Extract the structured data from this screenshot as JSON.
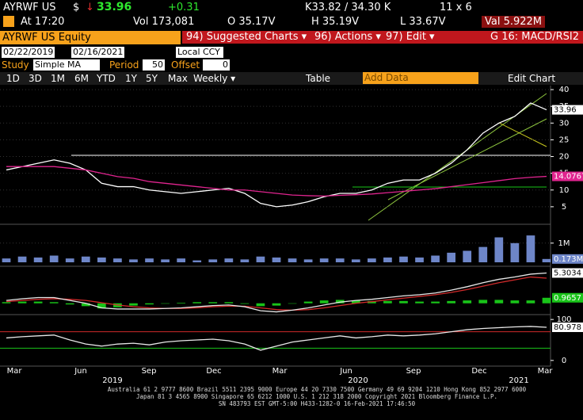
{
  "header": {
    "ticker": "AYRWF US",
    "currency": "$",
    "arrow": "↓",
    "price": "33.96",
    "change": "+0.31",
    "quote": "K33.82 / 34.30 K",
    "size": "11 x 6",
    "time": "At 17:20",
    "volume": "Vol 173,081",
    "open": "O 35.17V",
    "high": "H 35.19V",
    "low": "L 33.67V",
    "value": "Val 5.922M"
  },
  "toolbar": {
    "security": "AYRWF US Equity",
    "buttons": [
      "94) Suggested Charts ▾",
      "96) Actions ▾",
      "97) Edit ▾"
    ],
    "chart_name": "G 16: MACD/RSI2"
  },
  "controls": {
    "start": "02/22/2019",
    "end": "02/16/2021",
    "currency": "Local CCY",
    "study_label": "Study",
    "study": "Simple MA",
    "period_label": "Period",
    "period": "50",
    "offset_label": "Offset",
    "offset": "0",
    "ranges": [
      "1D",
      "3D",
      "1M",
      "6M",
      "YTD",
      "1Y",
      "5Y",
      "Max"
    ],
    "frequency": "Weekly ▾",
    "table": "Table",
    "add_data": "Add Data",
    "edit_chart": "Edit Chart"
  },
  "chart_data": [
    {
      "type": "line",
      "ylim": [
        0,
        41.2
      ],
      "yticks": [
        5,
        10,
        15,
        20,
        25,
        30,
        35,
        40
      ],
      "grid": true,
      "series": [
        {
          "color": "#ffffff",
          "values": [
            16,
            17,
            18,
            19,
            18,
            16,
            12,
            11,
            11,
            10,
            9.5,
            9,
            9.5,
            10,
            10.5,
            9,
            6,
            5,
            5.5,
            6.5,
            8,
            9,
            9,
            10,
            12,
            13,
            13,
            15,
            18,
            22,
            27,
            30,
            32,
            36,
            33.96
          ],
          "last_label": "33.96"
        },
        {
          "color": "#e0248f",
          "values": [
            17,
            17,
            17,
            17,
            16.5,
            16,
            15,
            14,
            13.5,
            12.5,
            12,
            11.5,
            11,
            10.5,
            10,
            10,
            9.5,
            9,
            8.5,
            8.3,
            8.2,
            8.4,
            8.6,
            8.8,
            9.2,
            9.6,
            10,
            10.4,
            11,
            11.6,
            12.2,
            12.8,
            13.4,
            13.8,
            14.0767
          ],
          "last_label": "14.0767"
        }
      ]
    },
    {
      "type": "bar",
      "ylim": [
        0,
        1.9
      ],
      "yticks": [
        {
          "value": 1,
          "label": "1M"
        }
      ],
      "grid": true,
      "series": [
        {
          "color": "#6e86c8",
          "values": [
            0.2,
            0.3,
            0.25,
            0.35,
            0.2,
            0.3,
            0.25,
            0.2,
            0.15,
            0.2,
            0.15,
            0.2,
            0.1,
            0.15,
            0.2,
            0.15,
            0.3,
            0.25,
            0.2,
            0.15,
            0.2,
            0.2,
            0.15,
            0.2,
            0.25,
            0.3,
            0.25,
            0.35,
            0.5,
            0.6,
            0.8,
            1.3,
            1.0,
            1.4,
            0.173
          ],
          "last_label": "0.173M"
        }
      ]
    },
    {
      "type": "line",
      "ylim": [
        -1.7,
        6.2
      ],
      "yticks": [],
      "grid": false,
      "series": [
        {
          "color": "#19c419",
          "style": "bar",
          "values": [
            0.2,
            0.3,
            0.3,
            0.2,
            -0.2,
            -0.5,
            -0.9,
            -0.7,
            -0.4,
            -0.2,
            0,
            0.1,
            0.2,
            0.2,
            0.2,
            -0.1,
            -0.5,
            -0.4,
            0,
            0.3,
            0.5,
            0.6,
            0.5,
            0.4,
            0.4,
            0.4,
            0.3,
            0.3,
            0.4,
            0.5,
            0.6,
            0.6,
            0.5,
            0.5,
            0.9657
          ],
          "last_label": "0.9657"
        },
        {
          "color": "#d02a2a",
          "values": [
            0.3,
            0.5,
            0.7,
            0.8,
            0.7,
            0.5,
            0.1,
            -0.3,
            -0.6,
            -0.8,
            -0.9,
            -0.9,
            -0.8,
            -0.6,
            -0.5,
            -0.5,
            -0.8,
            -1.1,
            -1.2,
            -1.1,
            -0.8,
            -0.4,
            0,
            0.3,
            0.6,
            0.9,
            1.2,
            1.5,
            1.9,
            2.4,
            3,
            3.6,
            4.1,
            4.6,
            4.4
          ]
        },
        {
          "color": "#e8e8e8",
          "values": [
            0.5,
            0.8,
            1,
            1,
            0.5,
            0,
            -0.8,
            -1,
            -1,
            -1,
            -0.9,
            -0.8,
            -0.6,
            -0.4,
            -0.3,
            -0.6,
            -1.3,
            -1.5,
            -1.2,
            -0.8,
            -0.3,
            0.2,
            0.5,
            0.7,
            1,
            1.3,
            1.5,
            1.8,
            2.3,
            2.9,
            3.6,
            4.2,
            4.6,
            5.1,
            5.3034
          ],
          "last_label": "5.3034"
        }
      ]
    },
    {
      "type": "line",
      "ylim": [
        -10,
        110
      ],
      "yticks": [
        0,
        100
      ],
      "grid": false,
      "levels": [
        {
          "value": 70,
          "color": "#d02a2a"
        },
        {
          "value": 30,
          "color": "#19c419"
        }
      ],
      "series": [
        {
          "color": "#e8e8e8",
          "values": [
            55,
            58,
            60,
            62,
            50,
            40,
            35,
            40,
            42,
            38,
            45,
            48,
            50,
            52,
            48,
            40,
            25,
            35,
            45,
            50,
            55,
            60,
            55,
            58,
            62,
            60,
            62,
            65,
            70,
            75,
            78,
            80,
            82,
            83,
            80.978
          ],
          "last_label": "80.978"
        }
      ]
    }
  ],
  "x_axis": {
    "months": [
      "Mar",
      "Jun",
      "Sep",
      "Dec",
      "Mar",
      "Jun",
      "Sep",
      "Dec",
      "Mar"
    ],
    "years": [
      "2019",
      "2020",
      "2021"
    ]
  },
  "footer": [
    "Australia 61 2 9777 8600 Brazil 5511 2395 9000 Europe 44 20 7330 7500 Germany 49 69 9204 1210 Hong Kong 852 2977 6000",
    "Japan 81 3 4565 8900      Singapore 65 6212 1000      U.S. 1 212 318 2000          Copyright 2021 Bloomberg Finance L.P.",
    "SN 483793 EST  GMT-5:00 H433-1282-0 16-Feb-2021 17:46:50"
  ]
}
